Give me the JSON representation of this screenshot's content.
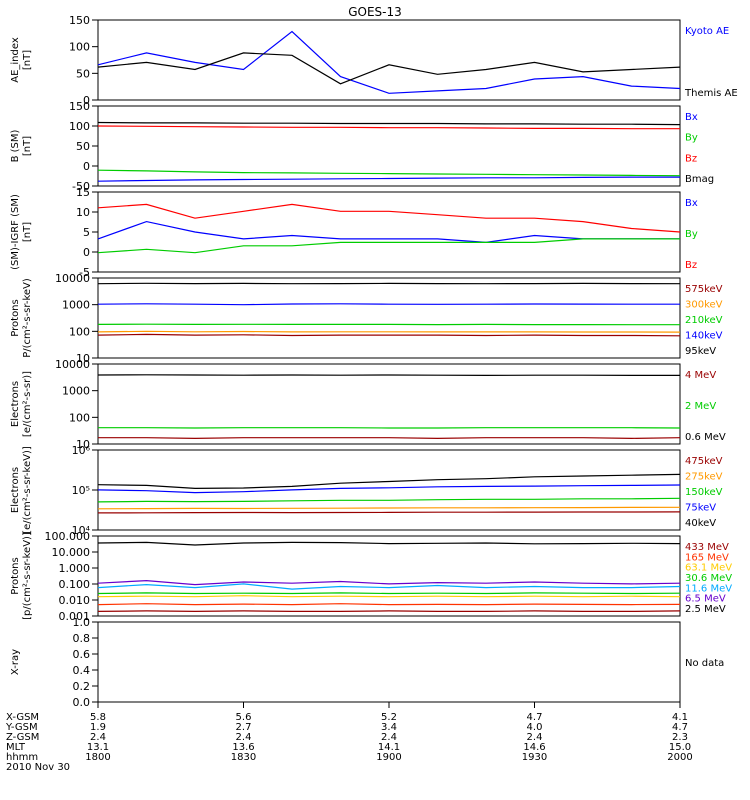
{
  "title": "GOES-13",
  "chart_data": [
    {
      "type": "line",
      "ylabel": "AE_index\n[nT]",
      "yticks": [
        "0",
        "50",
        "100",
        "150"
      ],
      "ylim": [
        0,
        160
      ],
      "x": [
        "1800",
        "1810",
        "1820",
        "1830",
        "1840",
        "1850",
        "1900",
        "1910",
        "1920",
        "1930",
        "1940",
        "1950",
        "2000"
      ],
      "series": [
        {
          "name": "Kyoto AE",
          "color": "#0000ff",
          "values": [
            70,
            95,
            75,
            60,
            140,
            45,
            10,
            15,
            20,
            40,
            45,
            25,
            20
          ]
        },
        {
          "name": "Themis AE",
          "color": "#000000",
          "values": [
            65,
            75,
            60,
            95,
            90,
            30,
            70,
            50,
            60,
            75,
            55,
            60,
            65
          ]
        }
      ]
    },
    {
      "type": "line",
      "ylabel": "B (SM)\n[nT]",
      "yticks": [
        "-50",
        "0",
        "50",
        "100",
        "150"
      ],
      "ylim": [
        -60,
        160
      ],
      "series": [
        {
          "name": "Bx",
          "color": "#0000ff",
          "values": [
            -52,
            -50,
            -48,
            -47,
            -46,
            -45,
            -44,
            -43,
            -42,
            -42,
            -41,
            -40,
            -40
          ]
        },
        {
          "name": "By",
          "color": "#00cc00",
          "values": [
            -20,
            -22,
            -25,
            -27,
            -28,
            -29,
            -30,
            -31,
            -32,
            -33,
            -34,
            -35,
            -36
          ]
        },
        {
          "name": "Bz",
          "color": "#ff0000",
          "values": [
            108,
            107,
            106,
            105,
            104,
            104,
            103,
            103,
            102,
            101,
            101,
            100,
            100
          ]
        },
        {
          "name": "Bmag",
          "color": "#000000",
          "values": [
            118,
            117,
            117,
            116,
            116,
            115,
            115,
            115,
            114,
            114,
            113,
            113,
            112
          ]
        }
      ]
    },
    {
      "type": "line",
      "ylabel": "(SM)-IGRF (SM)\n[nT]",
      "yticks": [
        "-5",
        "0",
        "5",
        "10",
        "15"
      ],
      "ylim": [
        -6,
        16
      ],
      "series": [
        {
          "name": "Bx",
          "color": "#0000ff",
          "values": [
            3,
            8,
            5,
            3,
            4,
            3,
            3,
            3,
            2,
            4,
            3,
            3,
            3
          ]
        },
        {
          "name": "By",
          "color": "#00cc00",
          "values": [
            -1,
            0,
            -1,
            1,
            1,
            2,
            2,
            2,
            2,
            2,
            3,
            3,
            3
          ]
        },
        {
          "name": "Bz",
          "color": "#ff0000",
          "values": [
            12,
            13,
            9,
            11,
            13,
            11,
            11,
            10,
            9,
            9,
            8,
            6,
            5
          ]
        }
      ]
    },
    {
      "type": "line",
      "ylabel": "Protons\nP/(cm²-s-sr-keV)",
      "yscale": "log",
      "yticks": [
        "10",
        "100",
        "1000",
        "10000"
      ],
      "ylim": [
        10,
        12000
      ],
      "series": [
        {
          "name": "575keV",
          "color": "#990000",
          "values": [
            70,
            75,
            70,
            72,
            68,
            70,
            70,
            70,
            68,
            70,
            68,
            68,
            66
          ]
        },
        {
          "name": "300keV",
          "color": "#ff9900",
          "values": [
            95,
            100,
            96,
            98,
            95,
            96,
            96,
            95,
            95,
            95,
            94,
            94,
            93
          ]
        },
        {
          "name": "210keV",
          "color": "#00cc00",
          "values": [
            190,
            195,
            190,
            192,
            190,
            190,
            190,
            188,
            190,
            188,
            188,
            186,
            186
          ]
        },
        {
          "name": "140keV",
          "color": "#0000ff",
          "values": [
            1250,
            1300,
            1250,
            1200,
            1280,
            1300,
            1250,
            1240,
            1260,
            1280,
            1270,
            1260,
            1250
          ]
        },
        {
          "name": "95keV",
          "color": "#000000",
          "values": [
            8500,
            8800,
            8600,
            8700,
            8500,
            8600,
            8700,
            8600,
            8500,
            8600,
            8700,
            8600,
            8500
          ]
        }
      ]
    },
    {
      "type": "line",
      "ylabel": "Electrons\n[e/(cm²-s-sr)]",
      "yscale": "log",
      "yticks": [
        "10",
        "100",
        "1000",
        "10000"
      ],
      "ylim": [
        10,
        12000
      ],
      "series": [
        {
          "name": "4 MeV",
          "color": "#990000",
          "values": [
            15,
            15,
            14,
            15,
            15,
            15,
            15,
            14,
            15,
            15,
            15,
            14,
            15
          ]
        },
        {
          "name": "2 MeV",
          "color": "#00cc00",
          "values": [
            38,
            38,
            37,
            38,
            38,
            38,
            37,
            37,
            38,
            38,
            38,
            38,
            37
          ]
        },
        {
          "name": "0.6 MeV",
          "color": "#000000",
          "values": [
            5200,
            5300,
            5200,
            5100,
            5200,
            5100,
            5200,
            5100,
            5000,
            5100,
            5100,
            5000,
            5000
          ]
        }
      ]
    },
    {
      "type": "line",
      "ylabel": "Electrons\n[e/(cm²-s-sr-keV)]",
      "yscale": "log",
      "yticks": [
        "10⁴",
        "10⁵",
        "10⁶"
      ],
      "ylim": [
        3000,
        1000000
      ],
      "series": [
        {
          "name": "475keV",
          "color": "#990000",
          "values": [
            9500,
            9600,
            9700,
            9800,
            9700,
            9800,
            9900,
            10000,
            10000,
            10100,
            10200,
            10200,
            10300
          ]
        },
        {
          "name": "275keV",
          "color": "#ff9900",
          "values": [
            13000,
            13200,
            13400,
            13300,
            13500,
            13600,
            13800,
            14000,
            14100,
            14200,
            14300,
            14500,
            14600
          ]
        },
        {
          "name": "150keV",
          "color": "#00cc00",
          "values": [
            22000,
            23000,
            22500,
            23000,
            24000,
            25000,
            25000,
            26000,
            27000,
            27000,
            28000,
            28000,
            29000
          ]
        },
        {
          "name": "75keV",
          "color": "#0000ff",
          "values": [
            55000,
            52000,
            45000,
            48000,
            55000,
            62000,
            65000,
            70000,
            72000,
            74000,
            76000,
            78000,
            80000
          ]
        },
        {
          "name": "40keV",
          "color": "#000000",
          "values": [
            82000,
            78000,
            62000,
            64000,
            72000,
            92000,
            105000,
            120000,
            130000,
            150000,
            160000,
            170000,
            180000
          ]
        }
      ]
    },
    {
      "type": "line",
      "ylabel": "Protons\n[p/(cm²-s-sr-keV)]",
      "yscale": "log",
      "yticks": [
        "0.001",
        "0.010",
        "0.100",
        "1.000",
        "10.000",
        "100.000"
      ],
      "ylim": [
        0.0008,
        120
      ],
      "series": [
        {
          "name": "433 MeV",
          "color": "#990000",
          "values": [
            0.0012,
            0.0013,
            0.0012,
            0.0013,
            0.0012,
            0.0012,
            0.0013,
            0.0012,
            0.0012,
            0.0013,
            0.0012,
            0.0012,
            0.0013
          ]
        },
        {
          "name": "165 MeV",
          "color": "#ff3300",
          "values": [
            0.0035,
            0.004,
            0.0035,
            0.0038,
            0.0035,
            0.004,
            0.0035,
            0.0036,
            0.0035,
            0.0038,
            0.0036,
            0.0035,
            0.0036
          ]
        },
        {
          "name": "63.1 MeV",
          "color": "#ffcc00",
          "values": [
            0.012,
            0.013,
            0.012,
            0.014,
            0.012,
            0.013,
            0.012,
            0.013,
            0.012,
            0.013,
            0.012,
            0.013,
            0.012
          ]
        },
        {
          "name": "30.6 MeV",
          "color": "#00cc00",
          "values": [
            0.02,
            0.022,
            0.02,
            0.021,
            0.02,
            0.022,
            0.02,
            0.021,
            0.02,
            0.022,
            0.021,
            0.02,
            0.021
          ]
        },
        {
          "name": "11.6 MeV",
          "color": "#00aaff",
          "values": [
            0.05,
            0.08,
            0.05,
            0.09,
            0.04,
            0.06,
            0.05,
            0.07,
            0.05,
            0.06,
            0.05,
            0.05,
            0.06
          ]
        },
        {
          "name": "6.5 MeV",
          "color": "#6600cc",
          "values": [
            0.1,
            0.15,
            0.08,
            0.12,
            0.1,
            0.13,
            0.09,
            0.11,
            0.1,
            0.12,
            0.1,
            0.09,
            0.1
          ]
        },
        {
          "name": "2.5 MeV",
          "color": "#000000",
          "values": [
            55,
            60,
            40,
            55,
            60,
            58,
            50,
            52,
            55,
            48,
            50,
            52,
            50
          ]
        }
      ]
    },
    {
      "type": "line",
      "ylabel": "X-ray",
      "yticks": [
        "0.0",
        "0.2",
        "0.4",
        "0.6",
        "0.8",
        "1.0"
      ],
      "ylim": [
        0,
        1
      ],
      "series": [],
      "note": "No data"
    }
  ],
  "bottom_table": {
    "row_labels": [
      "X-GSM",
      "Y-GSM",
      "Z-GSM",
      "MLT",
      "hhmm"
    ],
    "date_label": "2010 Nov 30",
    "columns": [
      [
        "5.8",
        "1.9",
        "2.4",
        "13.1",
        "1800"
      ],
      [
        "5.6",
        "2.7",
        "2.4",
        "13.6",
        "1830"
      ],
      [
        "5.2",
        "3.4",
        "2.4",
        "14.1",
        "1900"
      ],
      [
        "4.7",
        "4.0",
        "2.4",
        "14.6",
        "1930"
      ],
      [
        "4.1",
        "4.7",
        "2.3",
        "15.0",
        "2000"
      ]
    ]
  }
}
